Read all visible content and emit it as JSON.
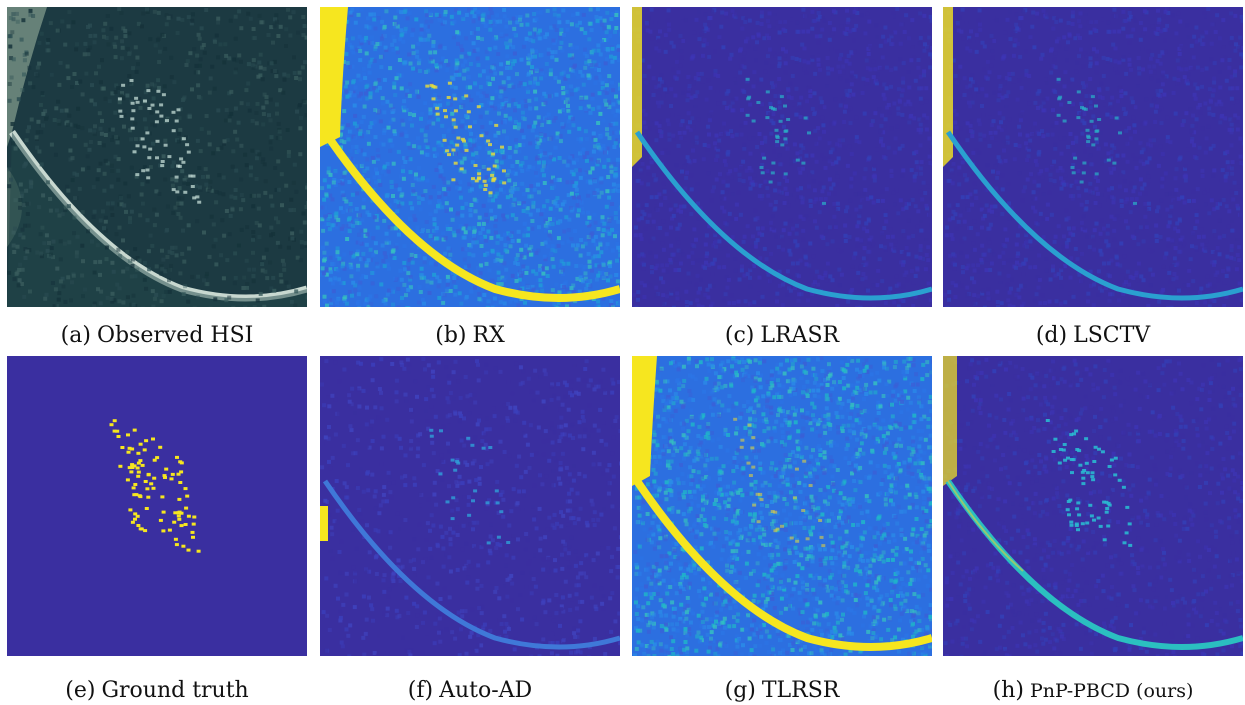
{
  "figure": {
    "panels": [
      {
        "id": "a",
        "tag": "(a)",
        "label": "Observed HSI",
        "kind": "rgb"
      },
      {
        "id": "b",
        "tag": "(b)",
        "label": "RX",
        "kind": "rx"
      },
      {
        "id": "c",
        "tag": "(c)",
        "label": "LRASR",
        "kind": "lowres"
      },
      {
        "id": "d",
        "tag": "(d)",
        "label": "LSCTV",
        "kind": "lowres"
      },
      {
        "id": "e",
        "tag": "(e)",
        "label": "Ground truth",
        "kind": "gt"
      },
      {
        "id": "f",
        "tag": "(f)",
        "label": "Auto-AD",
        "kind": "autoad"
      },
      {
        "id": "g",
        "tag": "(g)",
        "label": "TLRSR",
        "kind": "tlrsr"
      },
      {
        "id": "h",
        "tag": "(h)",
        "label": "PnP-PBCD (ours)",
        "kind": "ours"
      }
    ],
    "colors": {
      "background_dark": "#3a2fa0",
      "background_mid": "#2c6fe0",
      "cyan": "#1fb8c8",
      "yellow": "#f6e61f",
      "rgb_water": "#1c3a42",
      "rgb_shore": "#c8d8d0"
    }
  }
}
